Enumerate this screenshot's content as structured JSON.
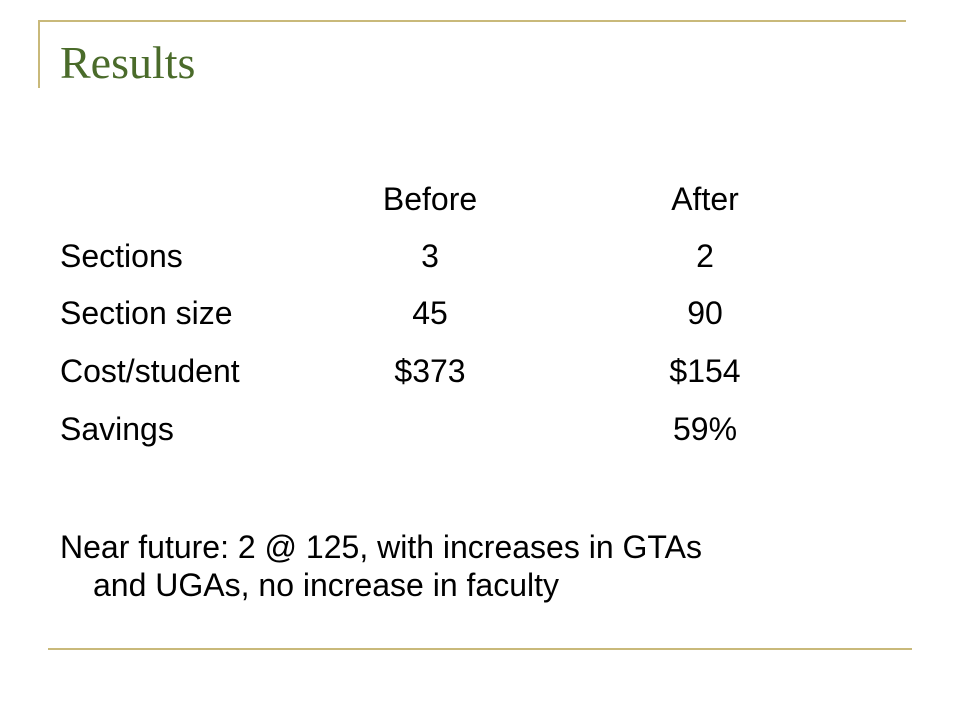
{
  "slide": {
    "title": "Results",
    "colors": {
      "title": "#4a6b2a",
      "accent": "#c9b97a",
      "text": "#000000"
    }
  },
  "table": {
    "headers": {
      "before": "Before",
      "after": "After"
    },
    "rows": [
      {
        "label": "Sections",
        "before": "3",
        "after": "2"
      },
      {
        "label": "Section size",
        "before": "45",
        "after": "90"
      },
      {
        "label": "Cost/student",
        "before": "$373",
        "after": "$154"
      },
      {
        "label": "Savings",
        "before": "",
        "after": "59%"
      }
    ]
  },
  "note": {
    "line1": "Near future: 2 @ 125, with increases in GTAs",
    "line2": "and UGAs, no increase in faculty"
  }
}
